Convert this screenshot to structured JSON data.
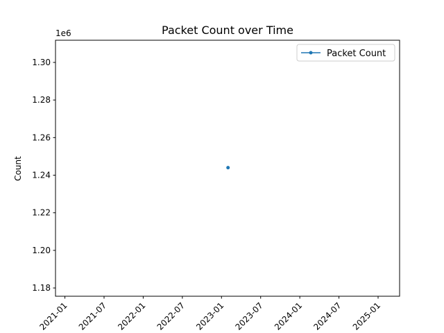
{
  "chart_data": {
    "type": "line",
    "title": "Packet Count over Time",
    "y_label": "Count",
    "y_offset_label": "1e6",
    "x": [
      "2023-02"
    ],
    "series": [
      {
        "name": "Packet Count",
        "color": "#1f77b4",
        "values": [
          1244000
        ]
      }
    ],
    "xlim": [
      "2020-11-18",
      "2025-04-10"
    ],
    "xticks": [
      "2021-01",
      "2021-07",
      "2022-01",
      "2022-07",
      "2023-01",
      "2023-07",
      "2024-01",
      "2024-07",
      "2025-01"
    ],
    "ylim": [
      1175600,
      1311800
    ],
    "yticks": [
      {
        "value": 1180000,
        "label": "1.18"
      },
      {
        "value": 1200000,
        "label": "1.20"
      },
      {
        "value": 1220000,
        "label": "1.22"
      },
      {
        "value": 1240000,
        "label": "1.24"
      },
      {
        "value": 1260000,
        "label": "1.26"
      },
      {
        "value": 1280000,
        "label": "1.28"
      },
      {
        "value": 1300000,
        "label": "1.30"
      }
    ],
    "legend": "upper right",
    "marker": true
  }
}
